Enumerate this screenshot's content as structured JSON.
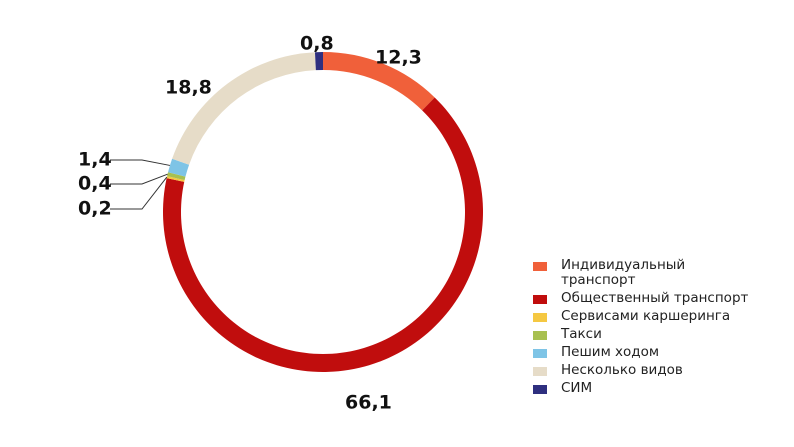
{
  "chart_data": {
    "type": "donut",
    "categories": [
      "Индивидуальный транспорт",
      "Общественный транспорт",
      "Сервисами каршеринга",
      "Такси",
      "Пешим ходом",
      "Несколько видов",
      "СИМ"
    ],
    "values": [
      12.3,
      66.1,
      0.2,
      0.4,
      1.4,
      18.8,
      0.8
    ],
    "value_labels": [
      "12,3",
      "66,1",
      "0,2",
      "0,4",
      "1,4",
      "18,8",
      "0,8"
    ],
    "colors": [
      "#f0603a",
      "#c00d0d",
      "#f5c842",
      "#a8c050",
      "#7ec4e6",
      "#e6dcc8",
      "#2e2f7f"
    ],
    "legend": "right"
  }
}
